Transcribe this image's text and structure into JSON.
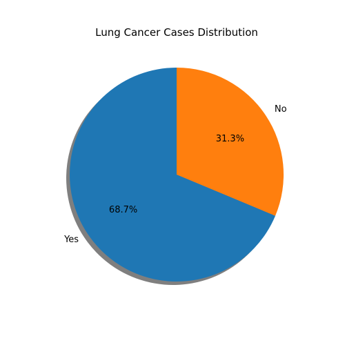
{
  "chart_data": {
    "type": "pie",
    "title": "Lung Cancer Cases Distribution",
    "start_angle_deg": 90,
    "counterclock": true,
    "shadow": true,
    "slices": [
      {
        "label": "Yes",
        "value": 68.7,
        "percent_label": "68.7%",
        "color": "#1f77b4"
      },
      {
        "label": "No",
        "value": 31.3,
        "percent_label": "31.3%",
        "color": "#ff7f0e"
      }
    ]
  }
}
